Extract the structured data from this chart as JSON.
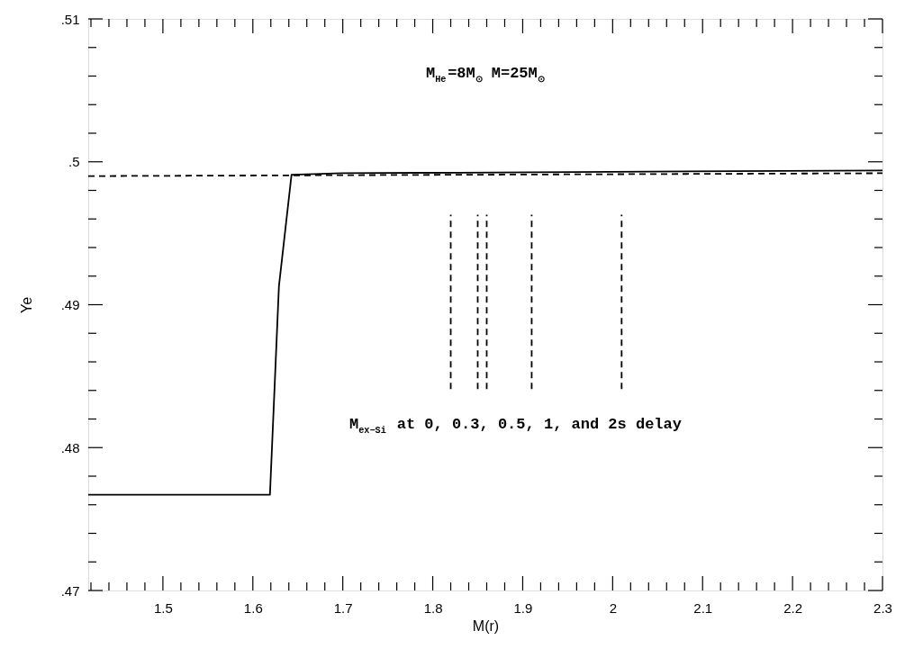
{
  "chart_data": {
    "type": "line",
    "xlabel": "M(r)",
    "ylabel": "Ye",
    "xlim": [
      1.417,
      2.3
    ],
    "ylim": [
      0.47,
      0.51
    ],
    "xticks": [
      {
        "value": 1.42,
        "label": null
      },
      {
        "value": 1.44,
        "label": null
      },
      {
        "value": 1.46,
        "label": null
      },
      {
        "value": 1.48,
        "label": null
      },
      1.5,
      {
        "value": 1.52,
        "label": null
      },
      {
        "value": 1.54,
        "label": null
      },
      {
        "value": 1.56,
        "label": null
      },
      {
        "value": 1.58,
        "label": null
      },
      1.6,
      {
        "value": 1.62,
        "label": null
      },
      {
        "value": 1.64,
        "label": null
      },
      {
        "value": 1.66,
        "label": null
      },
      {
        "value": 1.68,
        "label": null
      },
      1.7,
      {
        "value": 1.72,
        "label": null
      },
      {
        "value": 1.74,
        "label": null
      },
      {
        "value": 1.76,
        "label": null
      },
      {
        "value": 1.78,
        "label": null
      },
      1.8,
      {
        "value": 1.82,
        "label": null
      },
      {
        "value": 1.84,
        "label": null
      },
      {
        "value": 1.86,
        "label": null
      },
      {
        "value": 1.88,
        "label": null
      },
      1.9,
      {
        "value": 1.92,
        "label": null
      },
      {
        "value": 1.94,
        "label": null
      },
      {
        "value": 1.96,
        "label": null
      },
      {
        "value": 1.98,
        "label": null
      },
      2,
      {
        "value": 2.02,
        "label": null
      },
      {
        "value": 2.04,
        "label": null
      },
      {
        "value": 2.06,
        "label": null
      },
      {
        "value": 2.08,
        "label": null
      },
      2.1,
      {
        "value": 2.12,
        "label": null
      },
      {
        "value": 2.14,
        "label": null
      },
      {
        "value": 2.16,
        "label": null
      },
      {
        "value": 2.18,
        "label": null
      },
      2.2,
      {
        "value": 2.22,
        "label": null
      },
      {
        "value": 2.24,
        "label": null
      },
      {
        "value": 2.26,
        "label": null
      },
      {
        "value": 2.28,
        "label": null
      },
      2.3
    ],
    "yticks": [
      {
        "value": 0.47,
        "label": ".47"
      },
      {
        "value": 0.472,
        "label": null
      },
      {
        "value": 0.474,
        "label": null
      },
      {
        "value": 0.476,
        "label": null
      },
      {
        "value": 0.478,
        "label": null
      },
      {
        "value": 0.48,
        "label": ".48"
      },
      {
        "value": 0.482,
        "label": null
      },
      {
        "value": 0.484,
        "label": null
      },
      {
        "value": 0.486,
        "label": null
      },
      {
        "value": 0.488,
        "label": null
      },
      {
        "value": 0.49,
        "label": ".49"
      },
      {
        "value": 0.492,
        "label": null
      },
      {
        "value": 0.494,
        "label": null
      },
      {
        "value": 0.496,
        "label": null
      },
      {
        "value": 0.498,
        "label": null
      },
      {
        "value": 0.5,
        "label": ".5"
      },
      {
        "value": 0.502,
        "label": null
      },
      {
        "value": 0.504,
        "label": null
      },
      {
        "value": 0.506,
        "label": null
      },
      {
        "value": 0.508,
        "label": null
      },
      {
        "value": 0.51,
        "label": ".51"
      }
    ],
    "grid": false,
    "marker": "none",
    "series": [
      {
        "color": "#000000",
        "line_style": "solid",
        "x": [
          1.417,
          1.619,
          1.629,
          1.643,
          1.7,
          2.3
        ],
        "values": [
          0.4767,
          0.4767,
          0.4913,
          0.4991,
          0.4992,
          0.4994
        ]
      },
      {
        "color": "#000000",
        "line_style": "dashed",
        "x": [
          1.417,
          2.3
        ],
        "values": [
          0.499,
          0.4992
        ]
      },
      {
        "color": "#000000",
        "line_style": "dashed",
        "x": [
          1.82,
          1.82
        ],
        "values": [
          0.4841,
          0.4963
        ]
      },
      {
        "color": "#000000",
        "line_style": "dashed",
        "x": [
          1.85,
          1.85
        ],
        "values": [
          0.4841,
          0.4963
        ]
      },
      {
        "color": "#000000",
        "line_style": "dashed",
        "x": [
          1.86,
          1.86
        ],
        "values": [
          0.4841,
          0.4963
        ]
      },
      {
        "color": "#000000",
        "line_style": "dashed",
        "x": [
          1.91,
          1.91
        ],
        "values": [
          0.4841,
          0.4963
        ]
      },
      {
        "color": "#000000",
        "line_style": "dashed",
        "x": [
          2.01,
          2.01
        ],
        "values": [
          0.4841,
          0.4963
        ]
      }
    ],
    "annotations": [
      "M$_{He}$=8M$_{⊙}$ M=25M$_{⊙}$",
      "M$_{ex−Si}$ at 0, 0.3, 0.5, 1, and 2s delay"
    ]
  }
}
